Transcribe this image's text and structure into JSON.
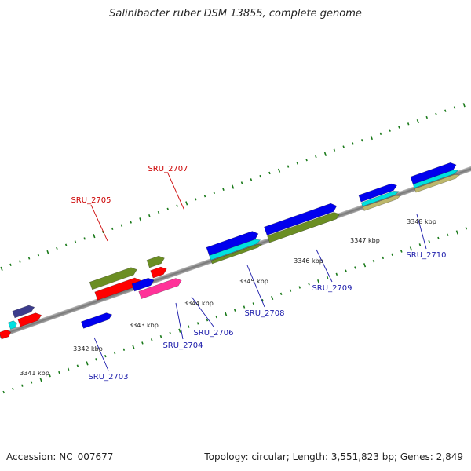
{
  "title": "Salinibacter ruber DSM 13855, complete genome",
  "accession": "Accession: NC_007677",
  "summary": "Topology: circular; Length: 3,551,823 bp; Genes: 2,849",
  "kbp_labels": [
    "3341 kbp",
    "3342 kbp",
    "3343 kbp",
    "3344 kbp",
    "3345 kbp",
    "3346 kbp",
    "3347 kbp",
    "3348 kbp"
  ],
  "gene_labels": [
    {
      "text": "SRU_2705",
      "color": "#cc0000"
    },
    {
      "text": "SRU_2707",
      "color": "#cc0000"
    },
    {
      "text": "SRU_2703",
      "color": "#1a1aaa"
    },
    {
      "text": "SRU_2704",
      "color": "#1a1aaa"
    },
    {
      "text": "SRU_2706",
      "color": "#1a1aaa"
    },
    {
      "text": "SRU_2708",
      "color": "#1a1aaa"
    },
    {
      "text": "SRU_2709",
      "color": "#1a1aaa"
    },
    {
      "text": "SRU_2710",
      "color": "#1a1aaa"
    }
  ],
  "colors": {
    "red": "#ff0000",
    "blue": "#0000ee",
    "olive": "#6b8e23",
    "cyan": "#00e0e0",
    "navy": "#3c3c8c",
    "magenta": "#ff3399",
    "tan": "#bdb76b",
    "tick": "#1a7a1a",
    "backbone": "#888888"
  }
}
